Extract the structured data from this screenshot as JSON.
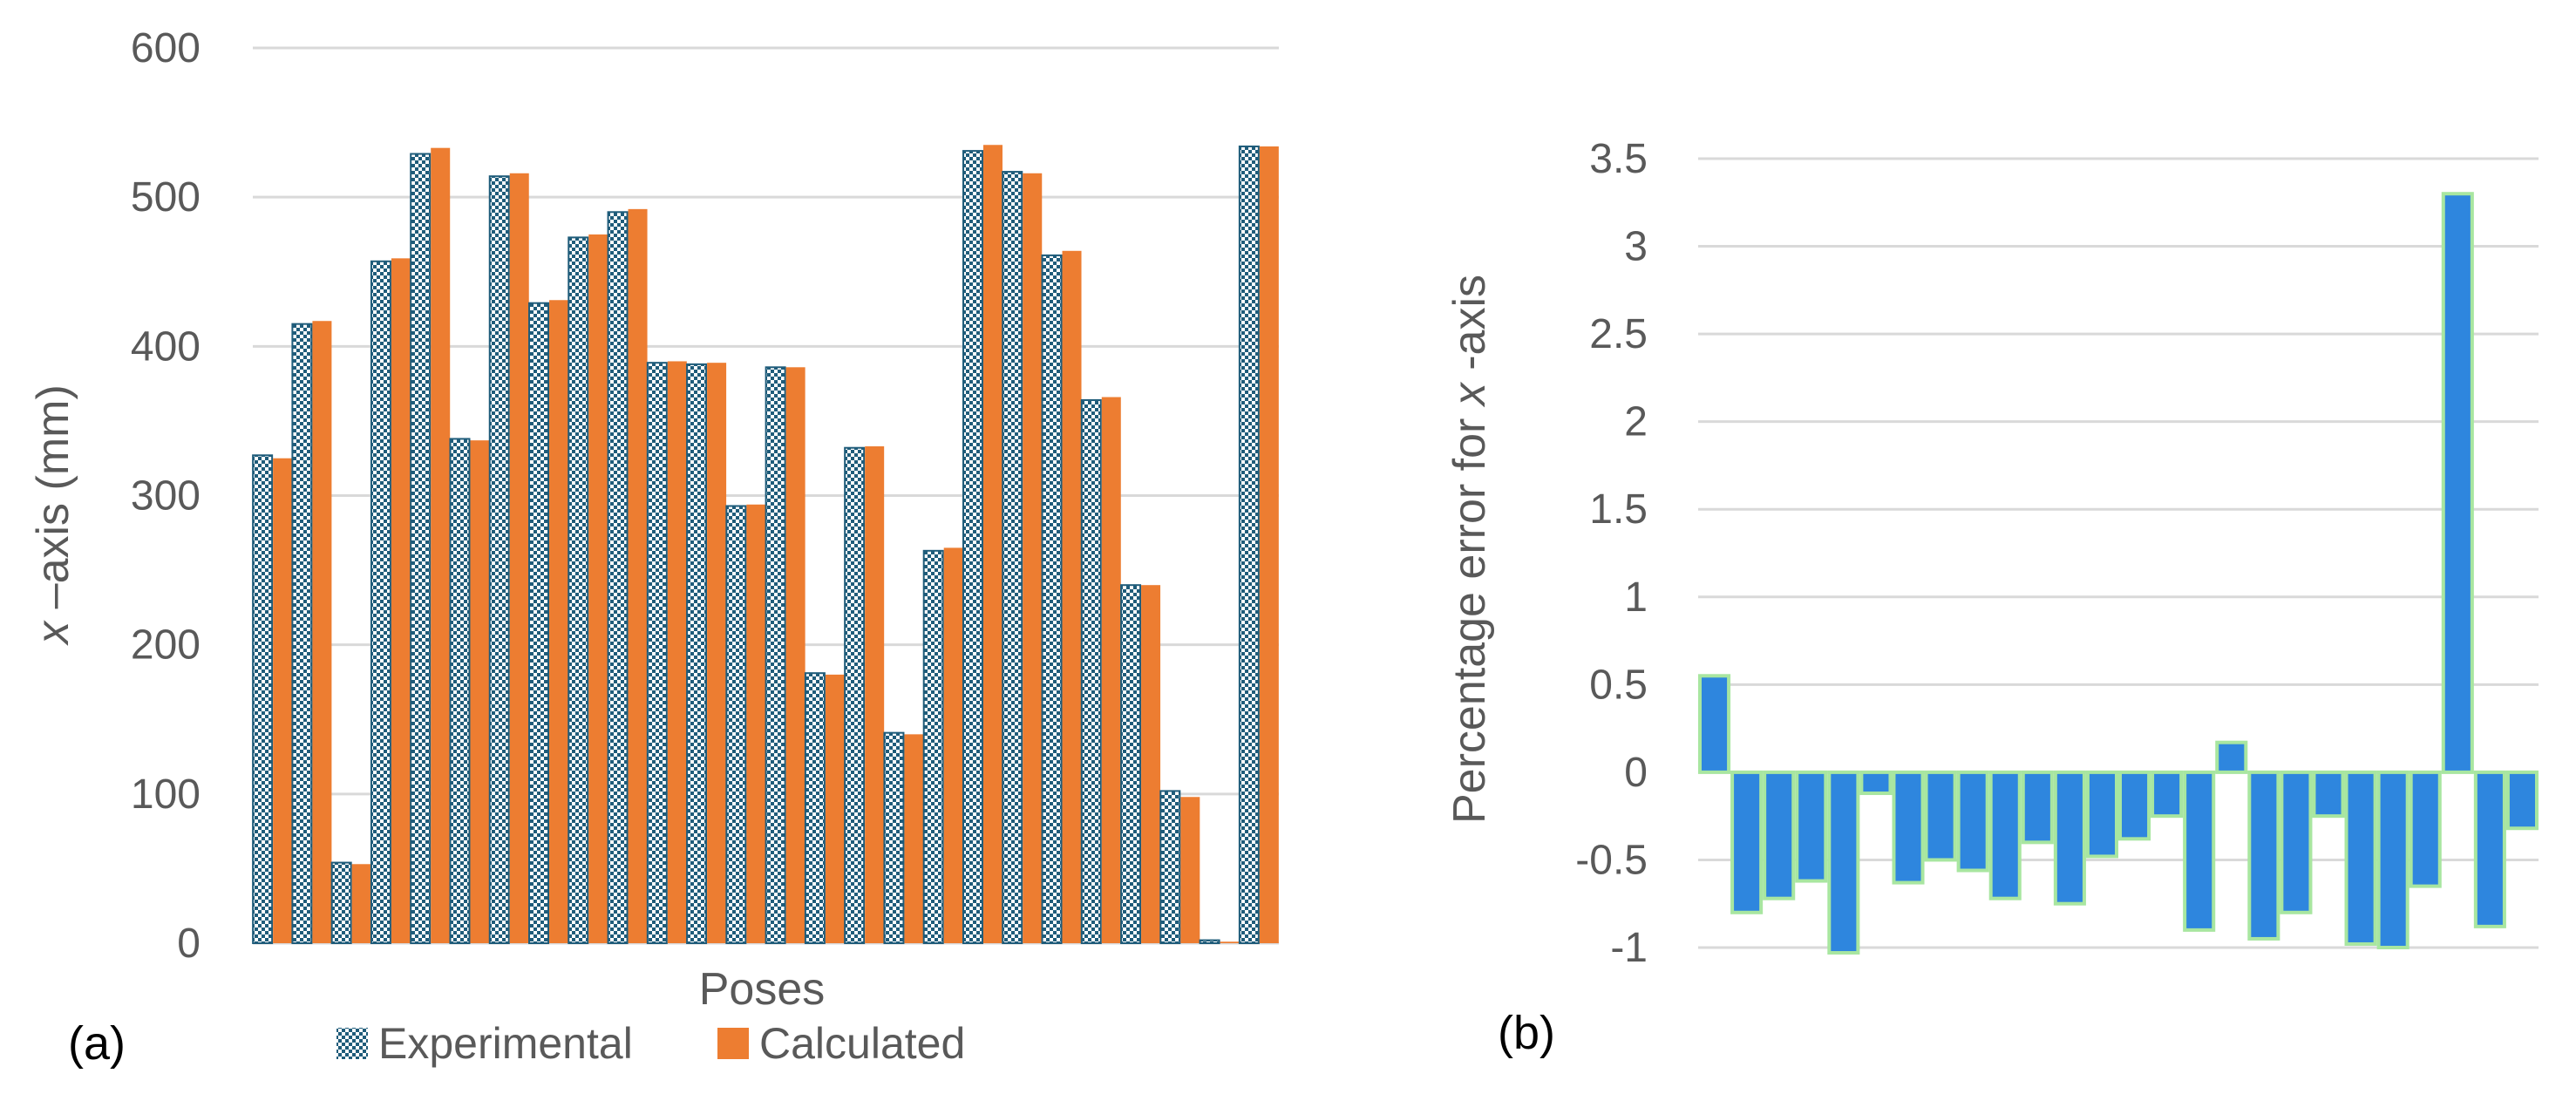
{
  "chart_data": [
    {
      "panel_label": "(a)",
      "type": "bar",
      "xlabel": "Poses",
      "ylabel_italic": "x",
      "ylabel_rest": " –axis (mm)",
      "ylim": [
        0,
        600
      ],
      "yticks": [
        "0",
        "100",
        "200",
        "300",
        "400",
        "500",
        "600"
      ],
      "grid": true,
      "legend_position": "bottom",
      "series": [
        {
          "name": "Experimental",
          "color": "#1F5C7A",
          "pattern": "checker",
          "values": [
            327,
            415,
            54,
            457,
            529,
            338,
            514,
            429,
            473,
            490,
            389,
            388,
            293,
            386,
            181,
            332,
            141,
            263,
            531,
            517,
            461,
            364,
            240,
            102,
            2,
            534
          ]
        },
        {
          "name": "Calculated",
          "color": "#ED7D31",
          "values": [
            325,
            417,
            53,
            459,
            533,
            337,
            516,
            431,
            475,
            492,
            390,
            389,
            294,
            386,
            180,
            333,
            140,
            265,
            535,
            516,
            464,
            366,
            240,
            98,
            1,
            534
          ]
        }
      ]
    },
    {
      "panel_label": "(b)",
      "type": "bar",
      "xlabel": "",
      "ylabel_pre": "Percentage error for ",
      "ylabel_italic": "x",
      "ylabel_post": " -axis",
      "ylim": [
        -1,
        3.5
      ],
      "yticks": [
        "-1",
        "-0.5",
        "0",
        "0.5",
        "1",
        "1.5",
        "2",
        "2.5",
        "3",
        "3.5"
      ],
      "grid": true,
      "series": [
        {
          "name": "Percentage error",
          "color": "#2E86DE",
          "edge_color": "#A8E6A0",
          "values": [
            0.55,
            -0.8,
            -0.72,
            -0.62,
            -1.03,
            -0.12,
            -0.63,
            -0.5,
            -0.56,
            -0.72,
            -0.4,
            -0.75,
            -0.48,
            -0.38,
            -0.25,
            -0.9,
            0.17,
            -0.95,
            -0.8,
            -0.25,
            -0.98,
            -1.0,
            -0.65,
            3.3,
            -0.88,
            -0.32
          ]
        }
      ]
    }
  ]
}
